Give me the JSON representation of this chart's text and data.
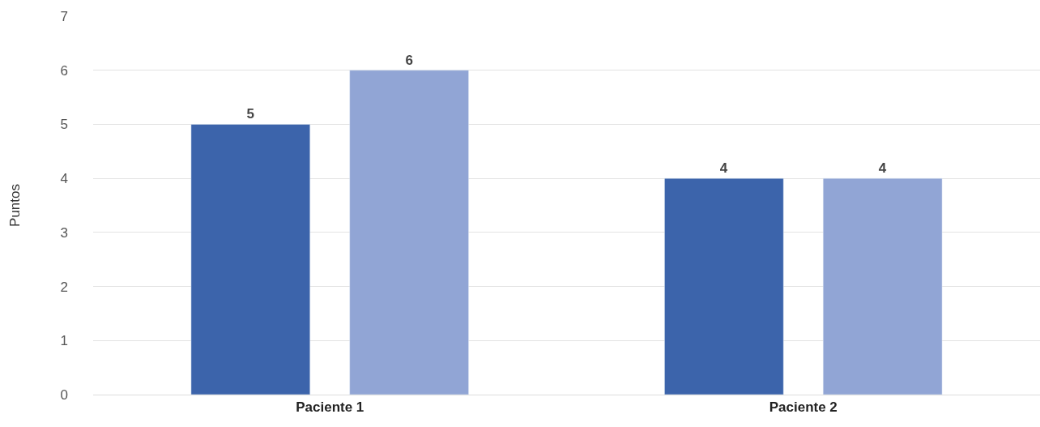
{
  "chart_data": {
    "type": "bar",
    "ylabel": "Puntos",
    "categories": [
      "Paciente 1",
      "Paciente 2"
    ],
    "series": [
      {
        "color": "#3c64ab",
        "values": [
          5,
          4
        ]
      },
      {
        "color": "#91a5d5",
        "values": [
          6,
          4
        ]
      }
    ],
    "ylim": [
      0,
      7
    ],
    "yticks": [
      0,
      1,
      2,
      3,
      4,
      5,
      6,
      7
    ],
    "grid": "y",
    "data_labels": true
  }
}
